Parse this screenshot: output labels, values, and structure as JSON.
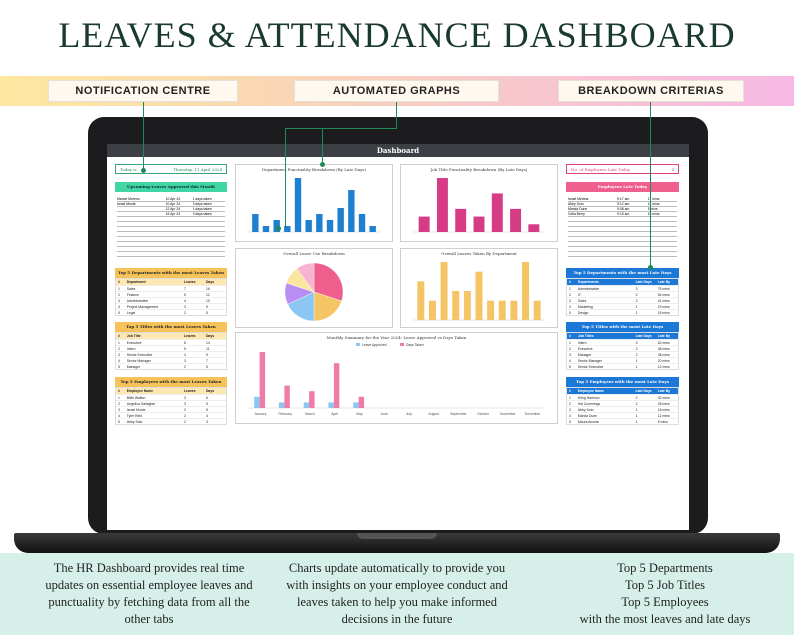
{
  "title": "LEAVES & ATTENDANCE DASHBOARD",
  "banner_tags": [
    "NOTIFICATION CENTRE",
    "AUTOMATED GRAPHS",
    "BREAKDOWN CRITERIAS"
  ],
  "footer": {
    "left": "The HR Dashboard provides real time updates on essential employee leaves and punctuality by fetching data from all the other tabs",
    "middle": "Charts update automatically to provide you with insights on your employee conduct and leaves taken to help you make informed decisions in the future",
    "right_lines": [
      "Top 5 Departments",
      "Top 5 Job Titles",
      "Top 5 Employees",
      "with the most leaves and late days"
    ]
  },
  "colors": {
    "green": "#3fd6a4",
    "orange": "#f6c25a",
    "blue": "#1c78d6",
    "pink": "#ee5f8e",
    "bar_blue": "#1f7fd0",
    "bar_pink": "#d63b86",
    "bar_orange": "#f5c465",
    "light_blue": "#8cc6f2",
    "light_pink": "#f07aa8"
  },
  "dashboard": {
    "header": "Dashboard",
    "today_label": "Today is",
    "today_value": "Thursday, 11 April 2024",
    "upcoming_header": "Upcoming Leaves Approved this Month",
    "upcoming": [
      {
        "name": "Marcel Moreno",
        "date": "10 Apr 24",
        "days": "1 days taken"
      },
      {
        "name": "Israel Monte",
        "date": "10 Apr 24",
        "days": "3 days taken"
      },
      {
        "name": "",
        "date": "12 Apr 24",
        "days": "1 days taken"
      },
      {
        "name": "",
        "date": "16 Apr 24",
        "days": "3 days taken"
      }
    ],
    "late_label": "No. of Employees Late Today",
    "late_value": "4",
    "late_header": "Employees Late Today",
    "late_today": [
      {
        "name": "Israel Medina",
        "time": "9:17 am",
        "mins": "17 mins"
      },
      {
        "name": "Abby Soto",
        "time": "9:12 am",
        "mins": "12 mins"
      },
      {
        "name": "Marcia Dunn",
        "time": "9:08 am",
        "mins": "8 mins"
      },
      {
        "name": "Celia Berry",
        "time": "9:15 am",
        "mins": "15 mins"
      }
    ],
    "top_depts_leaves": {
      "title": "Top 5 Departments with the most Leaves Taken",
      "headers": [
        "#",
        "Department",
        "Leaves",
        "Days"
      ],
      "rows": [
        [
          "1",
          "Sales",
          "7",
          "16"
        ],
        [
          "2",
          "Finance",
          "5",
          "12"
        ],
        [
          "3",
          "Administrative",
          "4",
          "10"
        ],
        [
          "4",
          "Project Management",
          "3",
          "9"
        ],
        [
          "5",
          "Legal",
          "2",
          "5"
        ]
      ]
    },
    "top_titles_leaves": {
      "title": "Top 5 Titles with the most Leaves Taken",
      "headers": [
        "#",
        "Job Title",
        "Leaves",
        "Days"
      ],
      "rows": [
        [
          "1",
          "Executive",
          "6",
          "14"
        ],
        [
          "2",
          "Intern",
          "5",
          "11"
        ],
        [
          "3",
          "Senior Executive",
          "4",
          "9"
        ],
        [
          "4",
          "Senior Manager",
          "3",
          "7"
        ],
        [
          "5",
          "Manager",
          "2",
          "5"
        ]
      ]
    },
    "top_emps_leaves": {
      "title": "Top 5 Employees with the most Leaves Taken",
      "headers": [
        "#",
        "Employee Name",
        "Leaves",
        "Days"
      ],
      "rows": [
        [
          "1",
          "Billie Walton",
          "3",
          "6"
        ],
        [
          "2",
          "Angelica Gallagher",
          "3",
          "5"
        ],
        [
          "3",
          "Israel Monte",
          "2",
          "5"
        ],
        [
          "4",
          "Tyler Reid",
          "2",
          "4"
        ],
        [
          "5",
          "Abby Soto",
          "2",
          "3"
        ]
      ]
    },
    "top_depts_late": {
      "title": "Top 5 Departments with the most Late Days",
      "headers": [
        "#",
        "Departments",
        "Late Days",
        "Late By"
      ],
      "rows": [
        [
          "1",
          "Administrative",
          "3",
          "75 mins"
        ],
        [
          "2",
          "IT",
          "2",
          "54 mins"
        ],
        [
          "3",
          "Sales",
          "2",
          "41 mins"
        ],
        [
          "4",
          "Marketing",
          "1",
          "23 mins"
        ],
        [
          "5",
          "Design",
          "1",
          "15 mins"
        ]
      ]
    },
    "top_titles_late": {
      "title": "Top 5 Titles with the most Late Days",
      "headers": [
        "#",
        "Job Titles",
        "Late Days",
        "Late By"
      ],
      "rows": [
        [
          "1",
          "Intern",
          "3",
          "62 mins"
        ],
        [
          "2",
          "Executive",
          "2",
          "48 mins"
        ],
        [
          "3",
          "Manager",
          "2",
          "38 mins"
        ],
        [
          "4",
          "Senior Manager",
          "1",
          "20 mins"
        ],
        [
          "5",
          "Senior Executive",
          "1",
          "12 mins"
        ]
      ]
    },
    "top_emps_late": {
      "title": "Top 5 Employees with the most Late Days",
      "headers": [
        "#",
        "Employee Name",
        "Late Days",
        "Late By"
      ],
      "rows": [
        [
          "1",
          "Kring Harrison",
          "2",
          "32 mins"
        ],
        [
          "2",
          "Hal Cummings",
          "2",
          "28 mins"
        ],
        [
          "3",
          "Abby Soto",
          "1",
          "18 mins"
        ],
        [
          "4",
          "Marcia Dunn",
          "1",
          "12 mins"
        ],
        [
          "5",
          "Maura Acosta",
          "1",
          "8 mins"
        ]
      ]
    }
  },
  "chart_data": [
    {
      "type": "bar",
      "title": "Department Punctuality Breakdown (By Late Days)",
      "values": [
        3,
        1,
        2,
        1,
        9,
        2,
        3,
        2,
        4,
        7,
        3,
        1
      ],
      "color": "#1f7fd0"
    },
    {
      "type": "bar",
      "title": "Job Title Punctuality Breakdown (By Late Days)",
      "values": [
        2,
        7,
        3,
        2,
        5,
        3,
        1
      ],
      "color": "#d63b86"
    },
    {
      "type": "pie",
      "title": "Overall Leave Use Breakdown",
      "values": [
        30,
        20,
        18,
        12,
        10,
        10
      ],
      "colors": [
        "#ee5f8e",
        "#f5c465",
        "#8cc6f2",
        "#b98ef2",
        "#fbe6a0",
        "#f7b3cf"
      ]
    },
    {
      "type": "bar",
      "title": "Overall Leaves Taken By Department",
      "values": [
        4,
        2,
        6,
        3,
        3,
        5,
        2,
        2,
        2,
        6,
        2
      ],
      "color": "#f5c465"
    },
    {
      "type": "bar",
      "title": "Monthly Summary for the Year 2024: Leave Approved vs Days Taken",
      "categories": [
        "January",
        "February",
        "March",
        "April",
        "May",
        "June",
        "July",
        "August",
        "September",
        "October",
        "November",
        "December"
      ],
      "series": [
        {
          "name": "Leave Approved",
          "values": [
            2,
            1,
            1,
            1,
            1,
            0,
            0,
            0,
            0,
            0,
            0,
            0
          ],
          "color": "#8cc6f2"
        },
        {
          "name": "Days Taken",
          "values": [
            10,
            4,
            3,
            8,
            2,
            0,
            0,
            0,
            0,
            0,
            0,
            0
          ],
          "color": "#f07aa8"
        }
      ]
    }
  ]
}
